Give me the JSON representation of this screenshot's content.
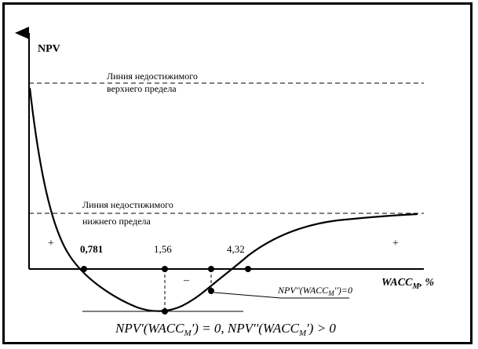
{
  "diagram": {
    "y_axis_label": "NPV",
    "x_axis_label_main": "WACC",
    "x_axis_label_sub": "M",
    "x_axis_label_tail": ", %",
    "upper_line_label_1": "Линия недостижимого",
    "upper_line_label_2": "верхнего предела",
    "lower_line_label_1": "Линия недостижимого",
    "lower_line_label_2": "нижнего предела",
    "tick_1": "0,781",
    "tick_2": "1,56",
    "tick_3": "4,32",
    "sign_left": "+",
    "sign_middle": "–",
    "sign_right": "+",
    "inflection_label": "NPV''(WACC",
    "inflection_label_sub": "M",
    "inflection_label_tail": "'')=0",
    "minimum_condition": "NPV'(WACC",
    "minimum_condition_sub": "M",
    "minimum_condition_mid": "') = 0, NPV''(WACC",
    "minimum_condition_sub2": "M",
    "minimum_condition_tail": "') > 0"
  }
}
